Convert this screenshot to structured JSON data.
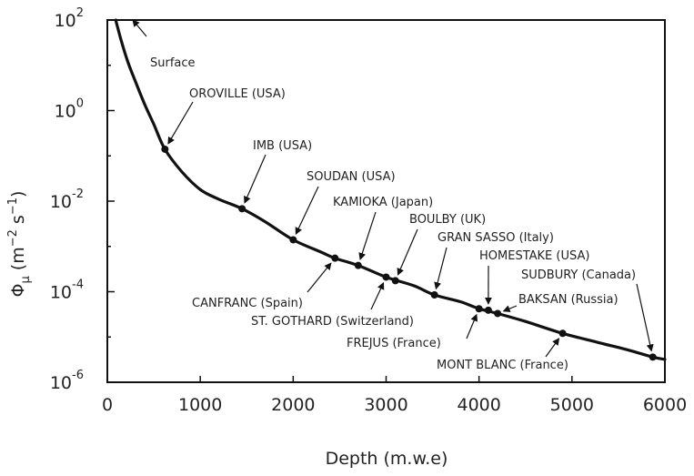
{
  "chart_data": {
    "type": "line",
    "xlabel": "Depth (m.w.e)",
    "ylabel_symbol": "Φ",
    "ylabel_symbol_sub": "μ",
    "ylabel_units_open": "(m",
    "ylabel_units_exp1": "−2",
    "ylabel_units_mid": " s",
    "ylabel_units_exp2": "−1",
    "ylabel_units_close": ")",
    "xlim": [
      0,
      6000
    ],
    "ylim": [
      1e-06,
      100
    ],
    "y_scale": "log",
    "grid": false,
    "x_ticks": [
      {
        "value": 0,
        "label": "0"
      },
      {
        "value": 1000,
        "label": "1000"
      },
      {
        "value": 2000,
        "label": "2000"
      },
      {
        "value": 3000,
        "label": "3000"
      },
      {
        "value": 4000,
        "label": "4000"
      },
      {
        "value": 5000,
        "label": "5000"
      },
      {
        "value": 6000,
        "label": "6000"
      }
    ],
    "y_ticks": [
      {
        "value": 100,
        "base": "10",
        "exp": "2"
      },
      {
        "value": 1,
        "base": "10",
        "exp": "0"
      },
      {
        "value": 0.01,
        "base": "10",
        "exp": "-2"
      },
      {
        "value": 0.0001,
        "base": "10",
        "exp": "-4"
      },
      {
        "value": 1e-06,
        "base": "10",
        "exp": "-6"
      }
    ],
    "curve": {
      "color": "#111111",
      "x": [
        90,
        150,
        220,
        300,
        400,
        500,
        620,
        800,
        1000,
        1200,
        1450,
        1700,
        2000,
        2300,
        2450,
        2700,
        3000,
        3300,
        3520,
        3800,
        4000,
        4200,
        4500,
        4900,
        5300,
        5600,
        5870,
        6000
      ],
      "y": [
        100,
        35,
        12,
        4.5,
        1.4,
        0.5,
        0.14,
        0.045,
        0.018,
        0.011,
        0.0068,
        0.0035,
        0.0014,
        0.00075,
        0.00055,
        0.00038,
        0.00021,
        0.000135,
        8.5e-05,
        6e-05,
        4.2e-05,
        3.3e-05,
        2.2e-05,
        1.2e-05,
        7.4e-06,
        5.2e-06,
        3.6e-06,
        3.2e-06
      ]
    },
    "labs": [
      {
        "name": "Surface",
        "depth": 0,
        "flux": 100
      },
      {
        "name": "OROVILLE (USA)",
        "depth": 620,
        "flux": 0.14
      },
      {
        "name": "IMB (USA)",
        "depth": 1450,
        "flux": 0.0068
      },
      {
        "name": "SOUDAN (USA)",
        "depth": 2000,
        "flux": 0.0014
      },
      {
        "name": "CANFRANC (Spain)",
        "depth": 2450,
        "flux": 0.00055
      },
      {
        "name": "KAMIOKA (Japan)",
        "depth": 2700,
        "flux": 0.00038
      },
      {
        "name": "ST. GOTHARD (Switzerland)",
        "depth": 3000,
        "flux": 0.00021
      },
      {
        "name": "BOULBY (UK)",
        "depth": 3100,
        "flux": 0.000175
      },
      {
        "name": "GRAN SASSO (Italy)",
        "depth": 3520,
        "flux": 8.5e-05
      },
      {
        "name": "FREJUS (France)",
        "depth": 4000,
        "flux": 4.2e-05
      },
      {
        "name": "HOMESTAKE (USA)",
        "depth": 4100,
        "flux": 3.9e-05
      },
      {
        "name": "BAKSAN (Russia)",
        "depth": 4200,
        "flux": 3.3e-05
      },
      {
        "name": "MONT BLANC (France)",
        "depth": 4900,
        "flux": 1.2e-05
      },
      {
        "name": "SUDBURY (Canada)",
        "depth": 5870,
        "flux": 3.6e-06
      }
    ]
  }
}
